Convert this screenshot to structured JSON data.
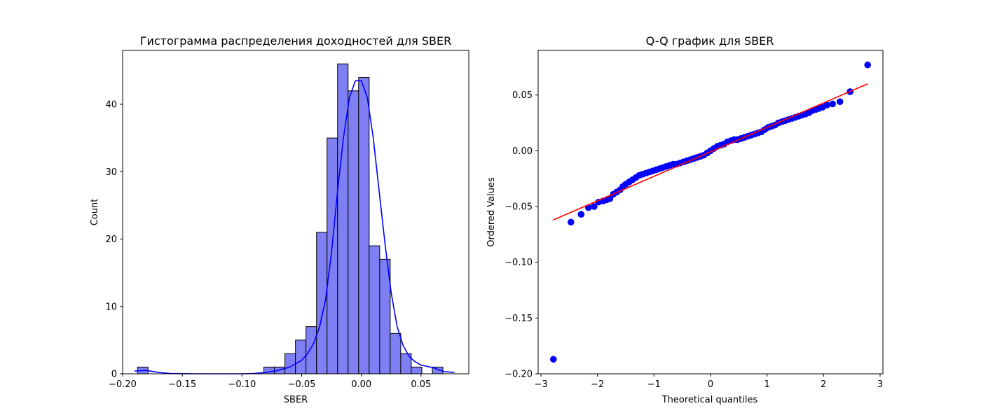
{
  "chart_data": [
    {
      "type": "histogram",
      "title": "Гистограмма распределения доходностей для SBER",
      "xlabel": "SBER",
      "ylabel": "Count",
      "xlim": [
        -0.2,
        0.09
      ],
      "ylim": [
        0,
        48
      ],
      "xticks": [
        -0.2,
        -0.15,
        -0.1,
        -0.05,
        0.0,
        0.05
      ],
      "xtick_labels": [
        "−0.20",
        "−0.15",
        "−0.10",
        "−0.05",
        "0.00",
        "0.05"
      ],
      "yticks": [
        0,
        10,
        20,
        30,
        40
      ],
      "ytick_labels": [
        "0",
        "10",
        "20",
        "30",
        "40"
      ],
      "bin_start": -0.1875,
      "bin_width": 0.00882,
      "counts": [
        1,
        0,
        0,
        0,
        0,
        0,
        0,
        0,
        0,
        0,
        0,
        0,
        1,
        1,
        3,
        5,
        7,
        21,
        35,
        46,
        42,
        44,
        19,
        17,
        6,
        3,
        1,
        0,
        1
      ],
      "bar_fill": "#7f7ff4",
      "bar_edge": "#000000",
      "kde_color": "#0000ff",
      "kde": {
        "x": [
          -0.19,
          -0.18,
          -0.17,
          -0.16,
          -0.14,
          -0.12,
          -0.1,
          -0.09,
          -0.08,
          -0.07,
          -0.06,
          -0.05,
          -0.045,
          -0.04,
          -0.035,
          -0.03,
          -0.025,
          -0.02,
          -0.015,
          -0.01,
          -0.005,
          0.0,
          0.005,
          0.01,
          0.015,
          0.02,
          0.025,
          0.03,
          0.035,
          0.04,
          0.045,
          0.05,
          0.055,
          0.06,
          0.065,
          0.07,
          0.078
        ],
        "y": [
          0.4,
          0.5,
          0.2,
          0.05,
          0.0,
          0.0,
          0.0,
          0.05,
          0.2,
          0.5,
          1.0,
          2.0,
          3.0,
          4.5,
          7,
          11,
          18,
          27,
          35,
          41,
          43.5,
          43.5,
          41,
          35,
          27,
          19,
          12,
          7,
          4.2,
          2.6,
          1.8,
          1.3,
          1.1,
          0.9,
          0.6,
          0.3,
          0.2
        ]
      }
    },
    {
      "type": "scatter",
      "title": "Q-Q график для SBER",
      "xlabel": "Theoretical quantiles",
      "ylabel": "Ordered Values",
      "xlim": [
        -3.05,
        3.05
      ],
      "ylim": [
        -0.2,
        0.09
      ],
      "xticks": [
        -3,
        -2,
        -1,
        0,
        1,
        2,
        3
      ],
      "xtick_labels": [
        "−3",
        "−2",
        "−1",
        "0",
        "1",
        "2",
        "3"
      ],
      "yticks": [
        -0.2,
        -0.15,
        -0.1,
        -0.05,
        0.0,
        0.05
      ],
      "ytick_labels": [
        "−0.20",
        "−0.15",
        "−0.10",
        "−0.05",
        "0.00",
        "0.05"
      ],
      "point_color": "#0000ff",
      "line_color": "#ff0000",
      "fit_line": {
        "x": [
          -2.78,
          2.78
        ],
        "y": [
          -0.062,
          0.06
        ]
      },
      "points": {
        "x": [
          -2.78,
          -2.47,
          -2.29,
          -2.16,
          -2.06,
          -1.98,
          -1.9,
          -1.84,
          -1.78,
          -1.72,
          -1.66,
          -1.6,
          -1.55,
          -1.5,
          -1.44,
          -1.38,
          -1.32,
          -1.26,
          -1.2,
          -1.14,
          -1.08,
          -1.02,
          -0.96,
          -0.9,
          -0.84,
          -0.78,
          -0.72,
          -0.66,
          -0.6,
          -0.54,
          -0.48,
          -0.42,
          -0.36,
          -0.3,
          -0.24,
          -0.18,
          -0.12,
          -0.06,
          0.0,
          0.06,
          0.12,
          0.18,
          0.24,
          0.3,
          0.36,
          0.42,
          0.48,
          0.54,
          0.6,
          0.66,
          0.72,
          0.78,
          0.84,
          0.9,
          0.96,
          1.02,
          1.08,
          1.14,
          1.2,
          1.26,
          1.32,
          1.38,
          1.44,
          1.5,
          1.56,
          1.62,
          1.68,
          1.74,
          1.8,
          1.86,
          1.92,
          1.98,
          2.06,
          2.16,
          2.29,
          2.47,
          2.78
        ],
        "y": [
          -0.187,
          -0.064,
          -0.057,
          -0.051,
          -0.05,
          -0.046,
          -0.045,
          -0.044,
          -0.043,
          -0.039,
          -0.037,
          -0.035,
          -0.032,
          -0.03,
          -0.028,
          -0.026,
          -0.024,
          -0.022,
          -0.021,
          -0.02,
          -0.019,
          -0.018,
          -0.017,
          -0.016,
          -0.015,
          -0.014,
          -0.013,
          -0.012,
          -0.012,
          -0.011,
          -0.01,
          -0.009,
          -0.008,
          -0.007,
          -0.006,
          -0.005,
          -0.004,
          -0.002,
          0.0,
          0.002,
          0.004,
          0.005,
          0.006,
          0.008,
          0.009,
          0.01,
          0.01,
          0.011,
          0.012,
          0.013,
          0.014,
          0.015,
          0.016,
          0.017,
          0.019,
          0.021,
          0.022,
          0.023,
          0.025,
          0.026,
          0.027,
          0.028,
          0.029,
          0.03,
          0.031,
          0.032,
          0.033,
          0.034,
          0.036,
          0.037,
          0.038,
          0.039,
          0.041,
          0.042,
          0.044,
          0.053,
          0.077
        ]
      }
    }
  ]
}
